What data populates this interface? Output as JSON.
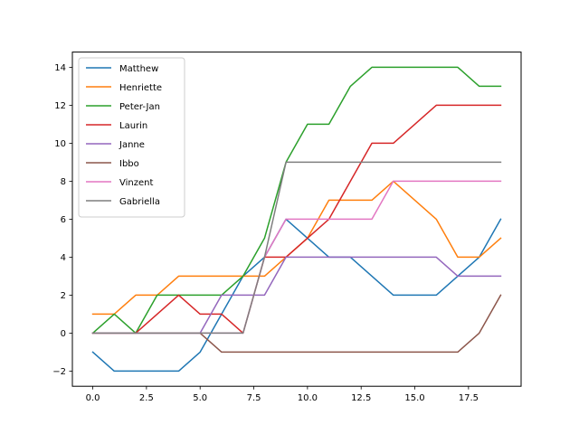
{
  "chart_data": {
    "type": "line",
    "title": "",
    "xlabel": "",
    "ylabel": "",
    "xlim": [
      -0.95,
      19.95
    ],
    "ylim": [
      -2.8,
      14.8
    ],
    "grid": false,
    "legend_position": "top-left",
    "x": [
      0,
      1,
      2,
      3,
      4,
      5,
      6,
      7,
      8,
      9,
      10,
      11,
      12,
      13,
      14,
      15,
      16,
      17,
      18,
      19
    ],
    "x_ticks": [
      0,
      2.5,
      5,
      7.5,
      10,
      12.5,
      15,
      17.5
    ],
    "x_tick_labels": [
      "0.0",
      "2.5",
      "5.0",
      "7.5",
      "10.0",
      "12.5",
      "15.0",
      "17.5"
    ],
    "y_ticks": [
      -2,
      0,
      2,
      4,
      6,
      8,
      10,
      12,
      14
    ],
    "y_tick_labels": [
      "−2",
      "0",
      "2",
      "4",
      "6",
      "8",
      "10",
      "12",
      "14"
    ],
    "series": [
      {
        "name": "Matthew",
        "color": "#1f77b4",
        "values": [
          -1,
          -2,
          -2,
          -2,
          -2,
          -1,
          1,
          3,
          4,
          6,
          5,
          4,
          4,
          3,
          2,
          2,
          2,
          3,
          4,
          6
        ]
      },
      {
        "name": "Henriette",
        "color": "#ff7f0e",
        "values": [
          1,
          1,
          2,
          2,
          3,
          3,
          3,
          3,
          3,
          4,
          5,
          7,
          7,
          7,
          8,
          7,
          6,
          4,
          4,
          5
        ]
      },
      {
        "name": "Peter-Jan",
        "color": "#2ca02c",
        "values": [
          0,
          1,
          0,
          2,
          2,
          2,
          2,
          3,
          5,
          9,
          11,
          11,
          13,
          14,
          14,
          14,
          14,
          14,
          13,
          13
        ]
      },
      {
        "name": "Laurin",
        "color": "#d62728",
        "values": [
          0,
          0,
          0,
          1,
          2,
          1,
          1,
          0,
          4,
          4,
          5,
          6,
          8,
          10,
          10,
          11,
          12,
          12,
          12,
          12
        ]
      },
      {
        "name": "Janne",
        "color": "#9467bd",
        "values": [
          0,
          0,
          0,
          0,
          0,
          0,
          2,
          2,
          2,
          4,
          4,
          4,
          4,
          4,
          4,
          4,
          4,
          3,
          3,
          3
        ]
      },
      {
        "name": "Ibbo",
        "color": "#8c564b",
        "values": [
          0,
          0,
          0,
          0,
          0,
          0,
          -1,
          -1,
          -1,
          -1,
          -1,
          -1,
          -1,
          -1,
          -1,
          -1,
          -1,
          -1,
          0,
          2
        ]
      },
      {
        "name": "Vinzent",
        "color": "#e377c2",
        "values": [
          0,
          0,
          0,
          0,
          0,
          0,
          0,
          0,
          4,
          6,
          6,
          6,
          6,
          6,
          8,
          8,
          8,
          8,
          8,
          8
        ]
      },
      {
        "name": "Gabriella",
        "color": "#7f7f7f",
        "values": [
          0,
          0,
          0,
          0,
          0,
          0,
          0,
          0,
          4,
          9,
          9,
          9,
          9,
          9,
          9,
          9,
          9,
          9,
          9,
          9
        ]
      }
    ]
  }
}
